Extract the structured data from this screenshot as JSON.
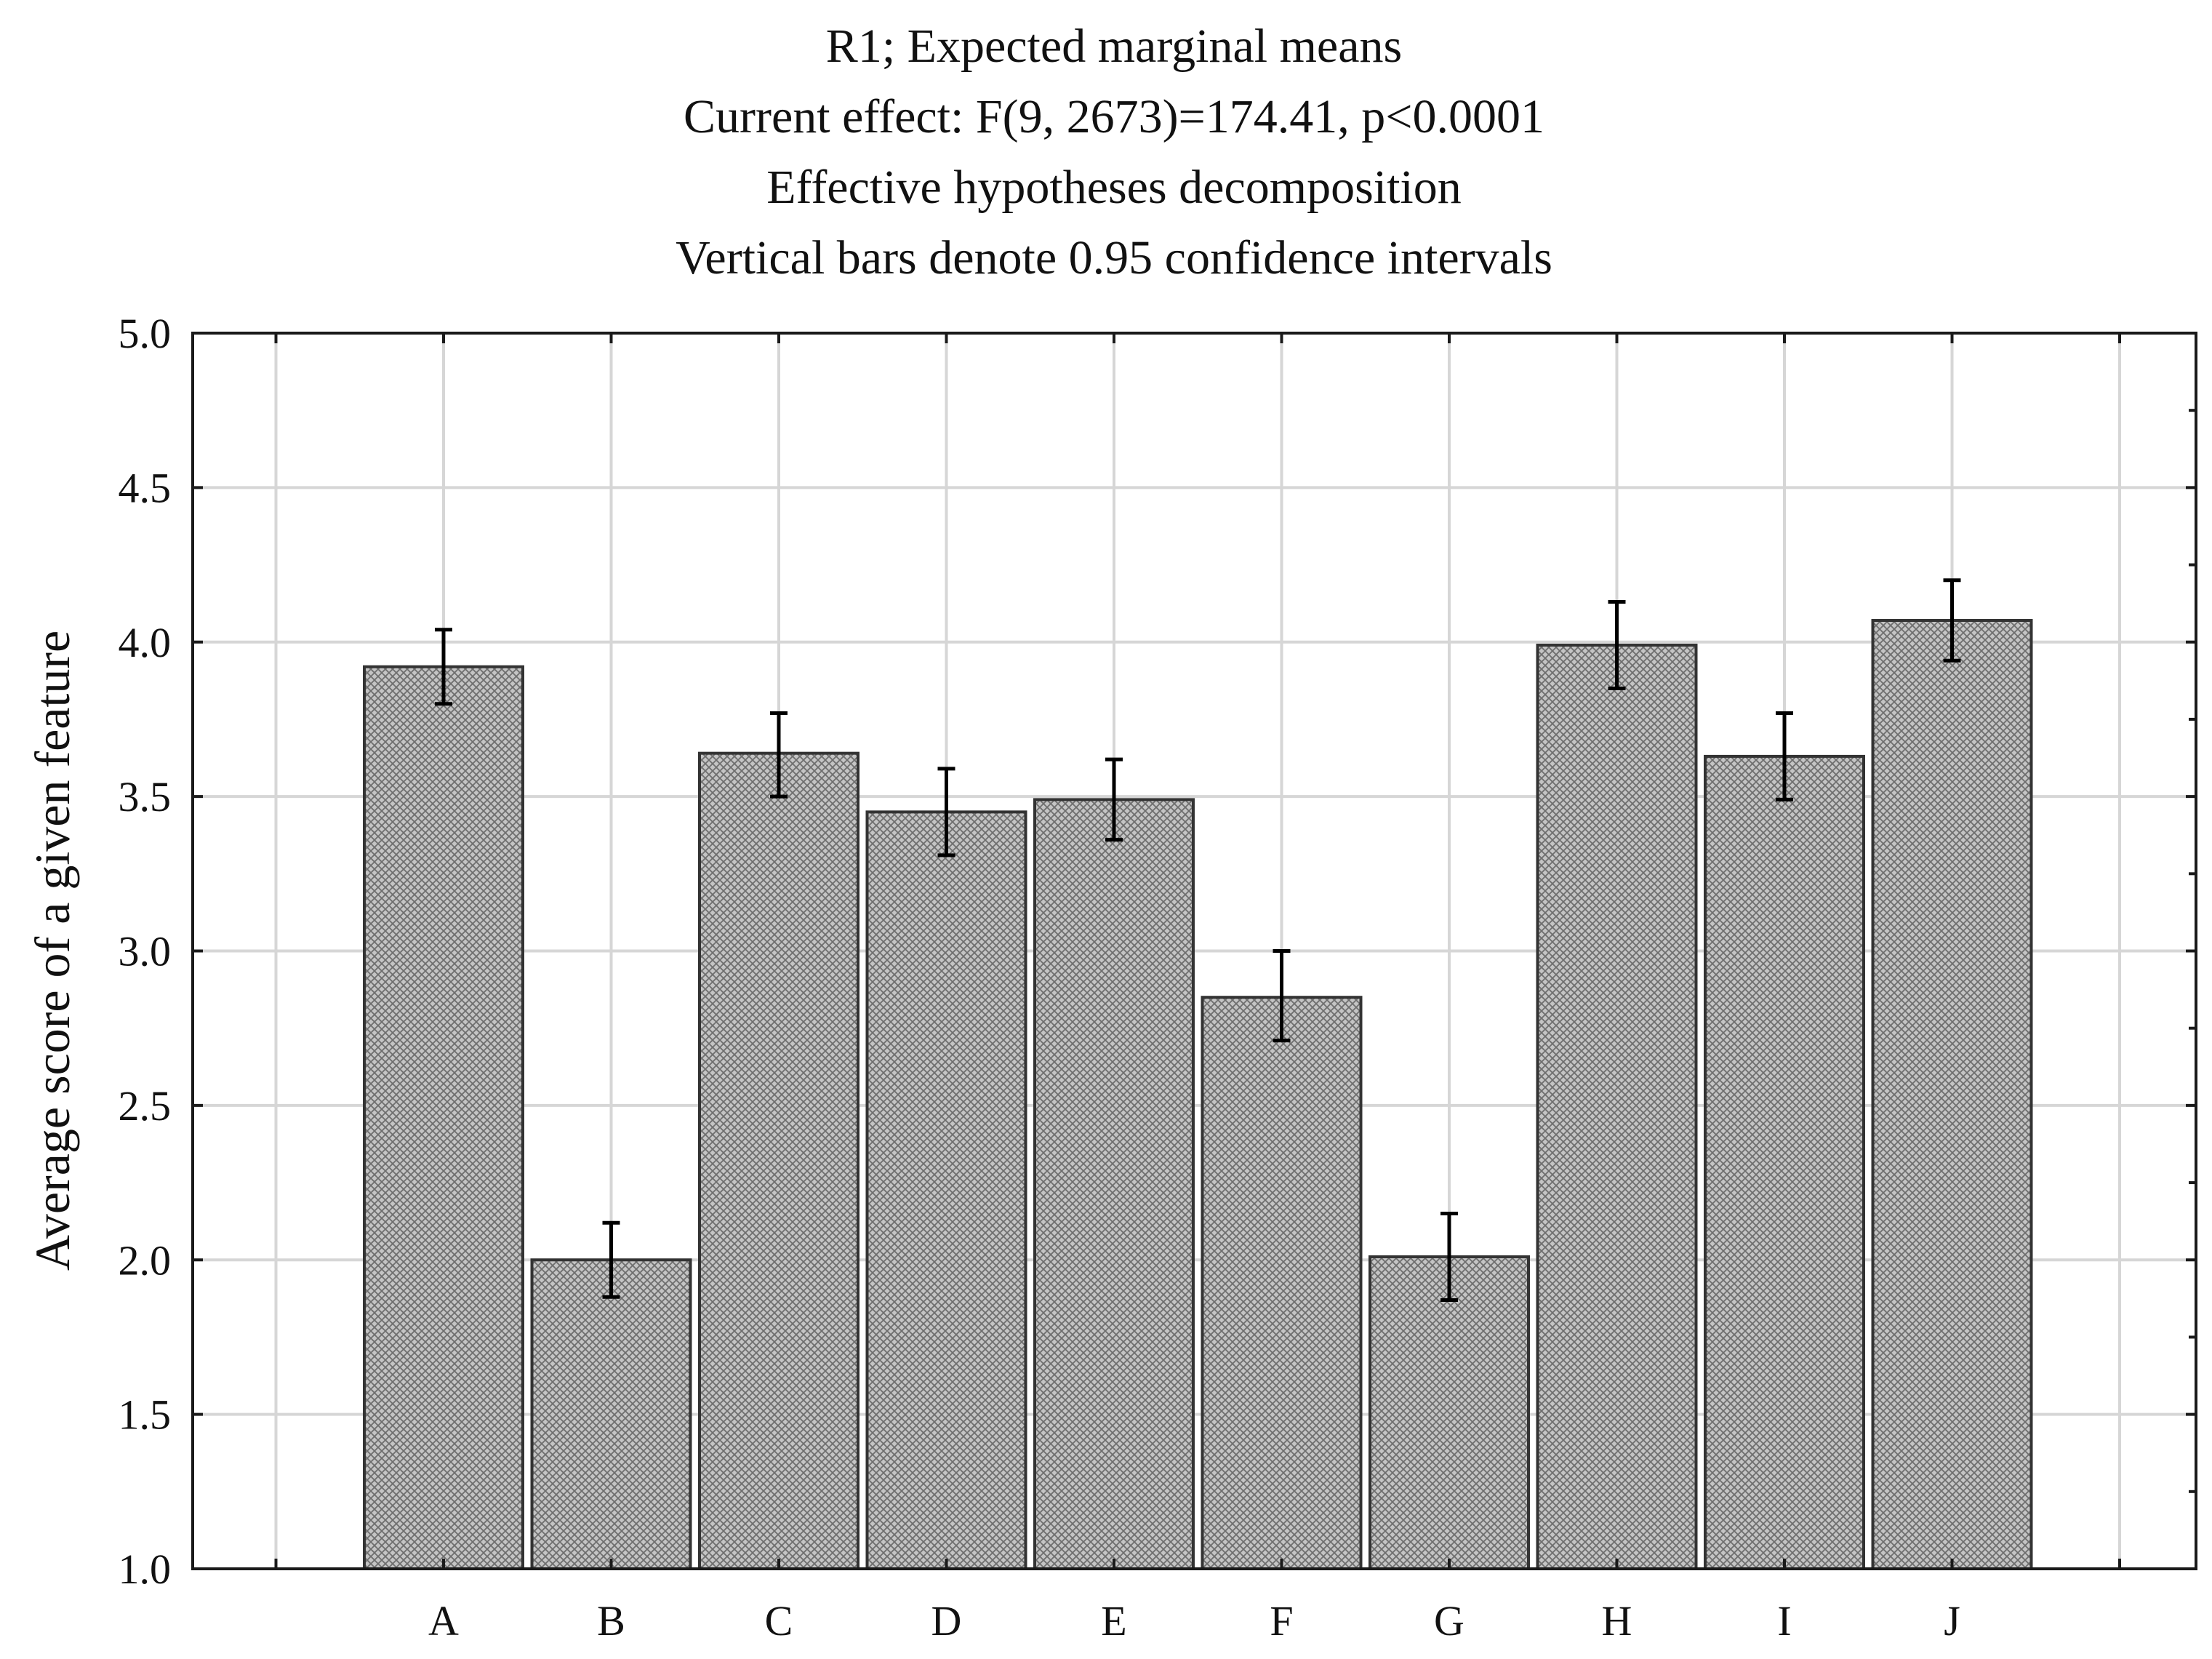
{
  "chart_data": {
    "type": "bar",
    "title_lines": [
      "R1; Expected marginal means",
      "Current effect: F(9, 2673)=174.41, p<0.0001",
      "Effective hypotheses decomposition",
      "Vertical bars denote 0.95 confidence intervals"
    ],
    "xlabel": "",
    "ylabel": "Average score of a given feature",
    "categories": [
      "A",
      "B",
      "C",
      "D",
      "E",
      "F",
      "G",
      "H",
      "I",
      "J"
    ],
    "values": [
      3.92,
      2.0,
      3.64,
      3.45,
      3.49,
      2.85,
      2.01,
      3.99,
      3.63,
      4.07
    ],
    "ci_lower": [
      3.8,
      1.88,
      3.5,
      3.31,
      3.36,
      2.71,
      1.87,
      3.85,
      3.49,
      3.94
    ],
    "ci_upper": [
      4.04,
      2.12,
      3.77,
      3.59,
      3.62,
      3.0,
      2.15,
      4.13,
      3.77,
      4.2
    ],
    "ylim": [
      1.0,
      5.0
    ],
    "yticks": [
      "1.0",
      "1.5",
      "2.0",
      "2.5",
      "3.0",
      "3.5",
      "4.0",
      "4.5",
      "5.0"
    ],
    "grid": true,
    "colors": {
      "bar_fill": "#bdbdbd",
      "bar_stroke": "#333333",
      "grid": "#d6d6d6",
      "error_bar": "#000000"
    }
  }
}
